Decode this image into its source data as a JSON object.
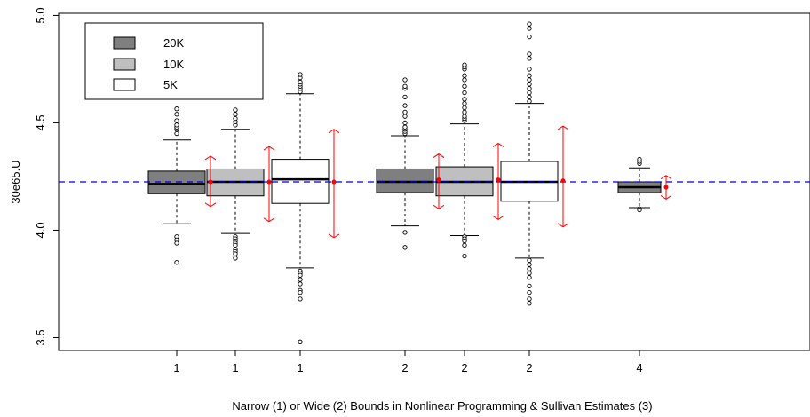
{
  "chart_data": {
    "type": "boxplot",
    "title": "",
    "xlabel": "Narrow (1) or Wide (2) Bounds in Nonlinear Programming & Sullivan Estimates (3)",
    "ylabel": "30e65.U",
    "ylim": [
      3.44,
      5.01
    ],
    "yticks": [
      "3.5",
      "4.0",
      "4.5",
      "5.0"
    ],
    "reference_line": {
      "value": 4.225,
      "color": "#0000cc",
      "style": "dashed"
    },
    "legend": {
      "placement": "top-left",
      "entries": [
        {
          "label": "20K",
          "fill": "#7f7f7f"
        },
        {
          "label": "10K",
          "fill": "#bfbfbf"
        },
        {
          "label": "5K",
          "fill": "#ffffff"
        }
      ]
    },
    "interval_color": "#ff0000",
    "boxes": [
      {
        "label": "1",
        "group": "20K",
        "fill": "#7f7f7f",
        "q1": 4.17,
        "median": 4.215,
        "q3": 4.275,
        "whisker_low": 4.03,
        "whisker_high": 4.42,
        "interval": {
          "mean": 4.225,
          "low": 4.11,
          "high": 4.345
        },
        "outliers": [
          4.45,
          4.47,
          4.48,
          4.49,
          4.51,
          4.54,
          4.565,
          3.97,
          3.955,
          3.94,
          3.85
        ]
      },
      {
        "label": "1",
        "group": "10K",
        "fill": "#bfbfbf",
        "q1": 4.16,
        "median": 4.225,
        "q3": 4.285,
        "whisker_low": 3.985,
        "whisker_high": 4.47,
        "interval": {
          "mean": 4.225,
          "low": 4.04,
          "high": 4.39
        },
        "outliers": [
          4.49,
          4.505,
          4.52,
          4.54,
          4.56,
          3.97,
          3.96,
          3.95,
          3.94,
          3.93,
          3.91,
          3.9,
          3.89,
          3.87
        ]
      },
      {
        "label": "1",
        "group": "5K",
        "fill": "#ffffff",
        "q1": 4.125,
        "median": 4.237,
        "q3": 4.33,
        "whisker_low": 3.825,
        "whisker_high": 4.635,
        "interval": {
          "mean": 4.225,
          "low": 3.965,
          "high": 4.47
        },
        "outliers": [
          4.645,
          4.66,
          4.67,
          4.68,
          4.69,
          4.71,
          4.725,
          3.81,
          3.8,
          3.79,
          3.77,
          3.75,
          3.72,
          3.71,
          3.68,
          3.48
        ]
      },
      {
        "label": "2",
        "group": "20K",
        "fill": "#7f7f7f",
        "q1": 4.175,
        "median": 4.225,
        "q3": 4.285,
        "whisker_low": 4.02,
        "whisker_high": 4.44,
        "interval": {
          "mean": 4.235,
          "low": 4.1,
          "high": 4.355
        },
        "outliers": [
          4.45,
          4.46,
          4.47,
          4.48,
          4.5,
          4.53,
          4.55,
          4.58,
          4.62,
          4.66,
          4.67,
          4.7,
          3.99,
          3.92
        ]
      },
      {
        "label": "2",
        "group": "10K",
        "fill": "#bfbfbf",
        "q1": 4.16,
        "median": 4.225,
        "q3": 4.295,
        "whisker_low": 3.975,
        "whisker_high": 4.495,
        "interval": {
          "mean": 4.235,
          "low": 4.05,
          "high": 4.405
        },
        "outliers": [
          4.51,
          4.52,
          4.53,
          4.55,
          4.57,
          4.59,
          4.61,
          4.64,
          4.67,
          4.7,
          4.72,
          4.75,
          4.76,
          4.77,
          3.97,
          3.96,
          3.95,
          3.93,
          3.88
        ]
      },
      {
        "label": "2",
        "group": "5K",
        "fill": "#ffffff",
        "q1": 4.135,
        "median": 4.225,
        "q3": 4.32,
        "whisker_low": 3.87,
        "whisker_high": 4.59,
        "interval": {
          "mean": 4.23,
          "low": 4.015,
          "high": 4.485
        },
        "outliers": [
          4.6,
          4.62,
          4.64,
          4.66,
          4.68,
          4.7,
          4.72,
          4.75,
          4.8,
          4.82,
          4.9,
          4.94,
          4.96,
          3.86,
          3.84,
          3.82,
          3.8,
          3.78,
          3.74,
          3.71,
          3.68,
          3.66
        ]
      },
      {
        "label": "4",
        "group": "20K",
        "fill": "#7f7f7f",
        "q1": 4.175,
        "median": 4.2,
        "q3": 4.225,
        "whisker_low": 4.105,
        "whisker_high": 4.29,
        "interval": {
          "mean": 4.2,
          "low": 4.145,
          "high": 4.255
        },
        "outliers": [
          4.31,
          4.32,
          4.33,
          4.1,
          4.095
        ]
      }
    ]
  }
}
